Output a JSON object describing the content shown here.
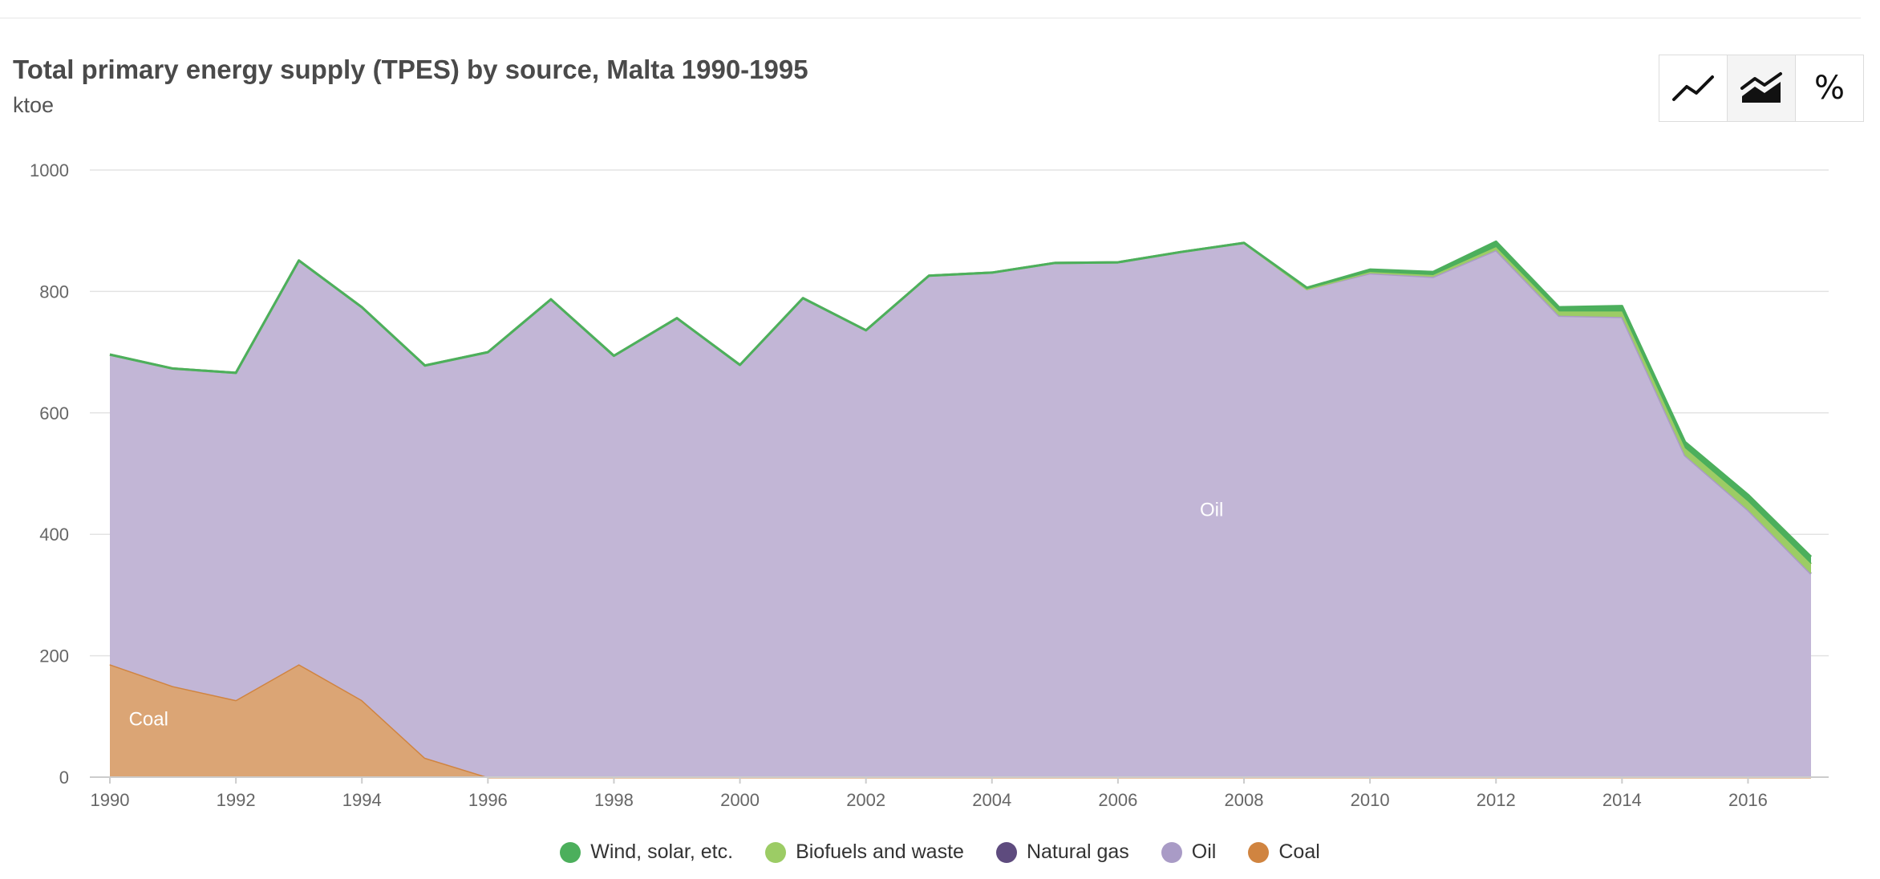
{
  "header": {
    "title": "Total primary energy supply (TPES) by source, Malta 1990-1995",
    "unit": "ktoe"
  },
  "toolbar": {
    "line_icon": "line-chart-icon",
    "area_icon": "stacked-area-icon",
    "percent_label": "%"
  },
  "colors": {
    "wind": "#4caf5c",
    "biofuels": "#9ccc65",
    "natural_gas": "#5e4b7e",
    "oil": "#c2b6d6",
    "oil_line": "#a99bc6",
    "coal": "#dba575",
    "coal_line": "#d08440"
  },
  "legend": [
    {
      "label": "Wind, solar, etc.",
      "color": "#4caf5c"
    },
    {
      "label": "Biofuels and waste",
      "color": "#9ccc65"
    },
    {
      "label": "Natural gas",
      "color": "#5e4b7e"
    },
    {
      "label": "Oil",
      "color": "#a99bc6"
    },
    {
      "label": "Coal",
      "color": "#d08440"
    }
  ],
  "chart_data": {
    "type": "area",
    "stacked": true,
    "title": "Total primary energy supply (TPES) by source, Malta 1990-1995",
    "ylabel": "ktoe",
    "xlim": [
      1990,
      2017
    ],
    "ylim": [
      0,
      1000
    ],
    "yticks": [
      0,
      200,
      400,
      600,
      800,
      1000
    ],
    "xticks": [
      1990,
      1992,
      1994,
      1996,
      1998,
      2000,
      2002,
      2004,
      2006,
      2008,
      2010,
      2012,
      2014,
      2016
    ],
    "grid": true,
    "legend_position": "bottom",
    "x": [
      1990,
      1991,
      1992,
      1993,
      1994,
      1995,
      1996,
      1997,
      1998,
      1999,
      2000,
      2001,
      2002,
      2003,
      2004,
      2005,
      2006,
      2007,
      2008,
      2009,
      2010,
      2011,
      2012,
      2013,
      2014,
      2015,
      2016,
      2017
    ],
    "series": [
      {
        "name": "Coal",
        "values": [
          186,
          150,
          127,
          186,
          127,
          32,
          0,
          0,
          0,
          0,
          0,
          0,
          0,
          0,
          0,
          0,
          0,
          0,
          0,
          0,
          0,
          0,
          0,
          0,
          0,
          0,
          0,
          0
        ]
      },
      {
        "name": "Oil",
        "values": [
          510,
          523,
          539,
          665,
          647,
          646,
          700,
          787,
          694,
          756,
          679,
          789,
          736,
          826,
          831,
          847,
          848,
          865,
          880,
          804,
          830,
          824,
          868,
          760,
          758,
          530,
          440,
          335
        ]
      },
      {
        "name": "Natural gas",
        "values": [
          0,
          0,
          0,
          0,
          0,
          0,
          0,
          0,
          0,
          0,
          0,
          0,
          0,
          0,
          0,
          0,
          0,
          0,
          0,
          0,
          0,
          0,
          0,
          0,
          0,
          0,
          0,
          0
        ]
      },
      {
        "name": "Biofuels and waste",
        "values": [
          0,
          0,
          0,
          0,
          0,
          0,
          0,
          0,
          0,
          0,
          0,
          0,
          0,
          0,
          0,
          0,
          0,
          0,
          0,
          0,
          2,
          3,
          5,
          7,
          9,
          12,
          14,
          16
        ]
      },
      {
        "name": "Wind, solar, etc.",
        "values": [
          0,
          0,
          0,
          0,
          0,
          0,
          0,
          0,
          0,
          0,
          0,
          0,
          0,
          0,
          0,
          0,
          0,
          0,
          0,
          2,
          4,
          5,
          9,
          7,
          9,
          10,
          11,
          12
        ]
      }
    ],
    "annotations": [
      {
        "text": "Oil",
        "x": 2007.3,
        "y": 430
      },
      {
        "text": "Coal",
        "x": 1990.3,
        "y": 85
      }
    ]
  }
}
